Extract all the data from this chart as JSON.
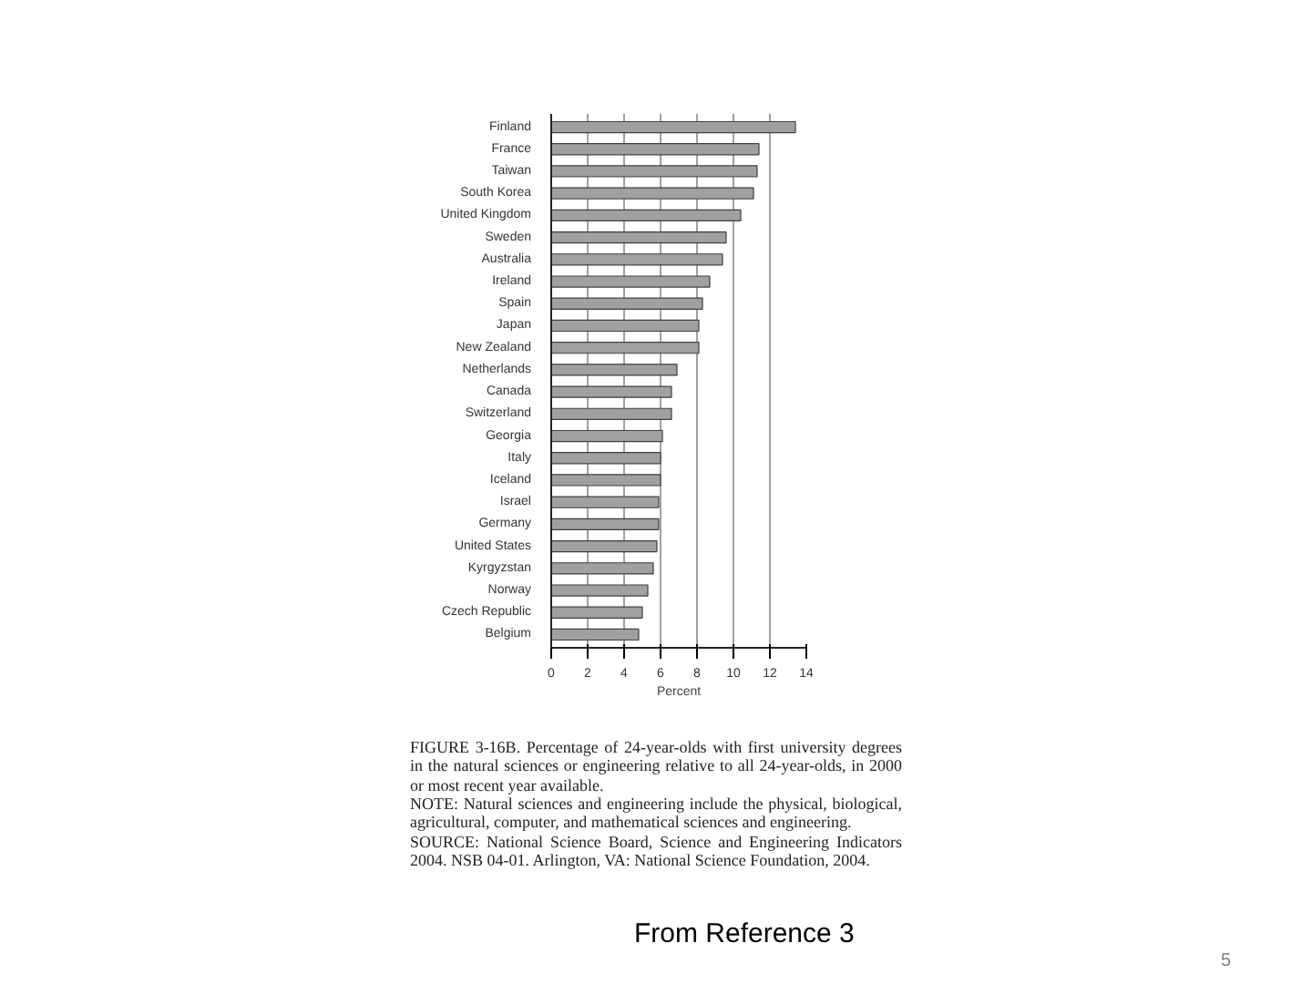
{
  "chart_data": {
    "type": "bar",
    "orientation": "horizontal",
    "xlabel": "Percent",
    "categories": [
      "Finland",
      "France",
      "Taiwan",
      "South Korea",
      "United Kingdom",
      "Sweden",
      "Australia",
      "Ireland",
      "Spain",
      "Japan",
      "New Zealand",
      "Netherlands",
      "Canada",
      "Switzerland",
      "Georgia",
      "Italy",
      "Iceland",
      "Israel",
      "Germany",
      "United States",
      "Kyrgyzstan",
      "Norway",
      "Czech Republic",
      "Belgium"
    ],
    "values": [
      13.4,
      11.4,
      11.3,
      11.1,
      10.4,
      9.6,
      9.4,
      8.7,
      8.3,
      8.1,
      8.1,
      6.9,
      6.6,
      6.6,
      6.1,
      6.0,
      6.0,
      5.9,
      5.9,
      5.8,
      5.6,
      5.3,
      5.0,
      4.8
    ],
    "color": "#a0a0a0",
    "xlim": [
      0,
      14
    ],
    "xticks": [
      0,
      2,
      4,
      6,
      8,
      10,
      12,
      14
    ],
    "grid": "x",
    "annotations": [
      "FIGURE 3-16B. Percentage of 24-year-olds with first university degrees in the natural sciences or engineering relative to all 24-year-olds, in 2000 or most recent year available.",
      "NOTE: Natural sciences and engineering include the physical, biological, agricultural, computer, and mathematical sciences and engineering.",
      "SOURCE: National Science Board, Science and Engineering Indicators 2004. NSB 04-01. Arlington, VA: National Science Foundation, 2004.",
      "From Reference 3",
      "5"
    ]
  }
}
